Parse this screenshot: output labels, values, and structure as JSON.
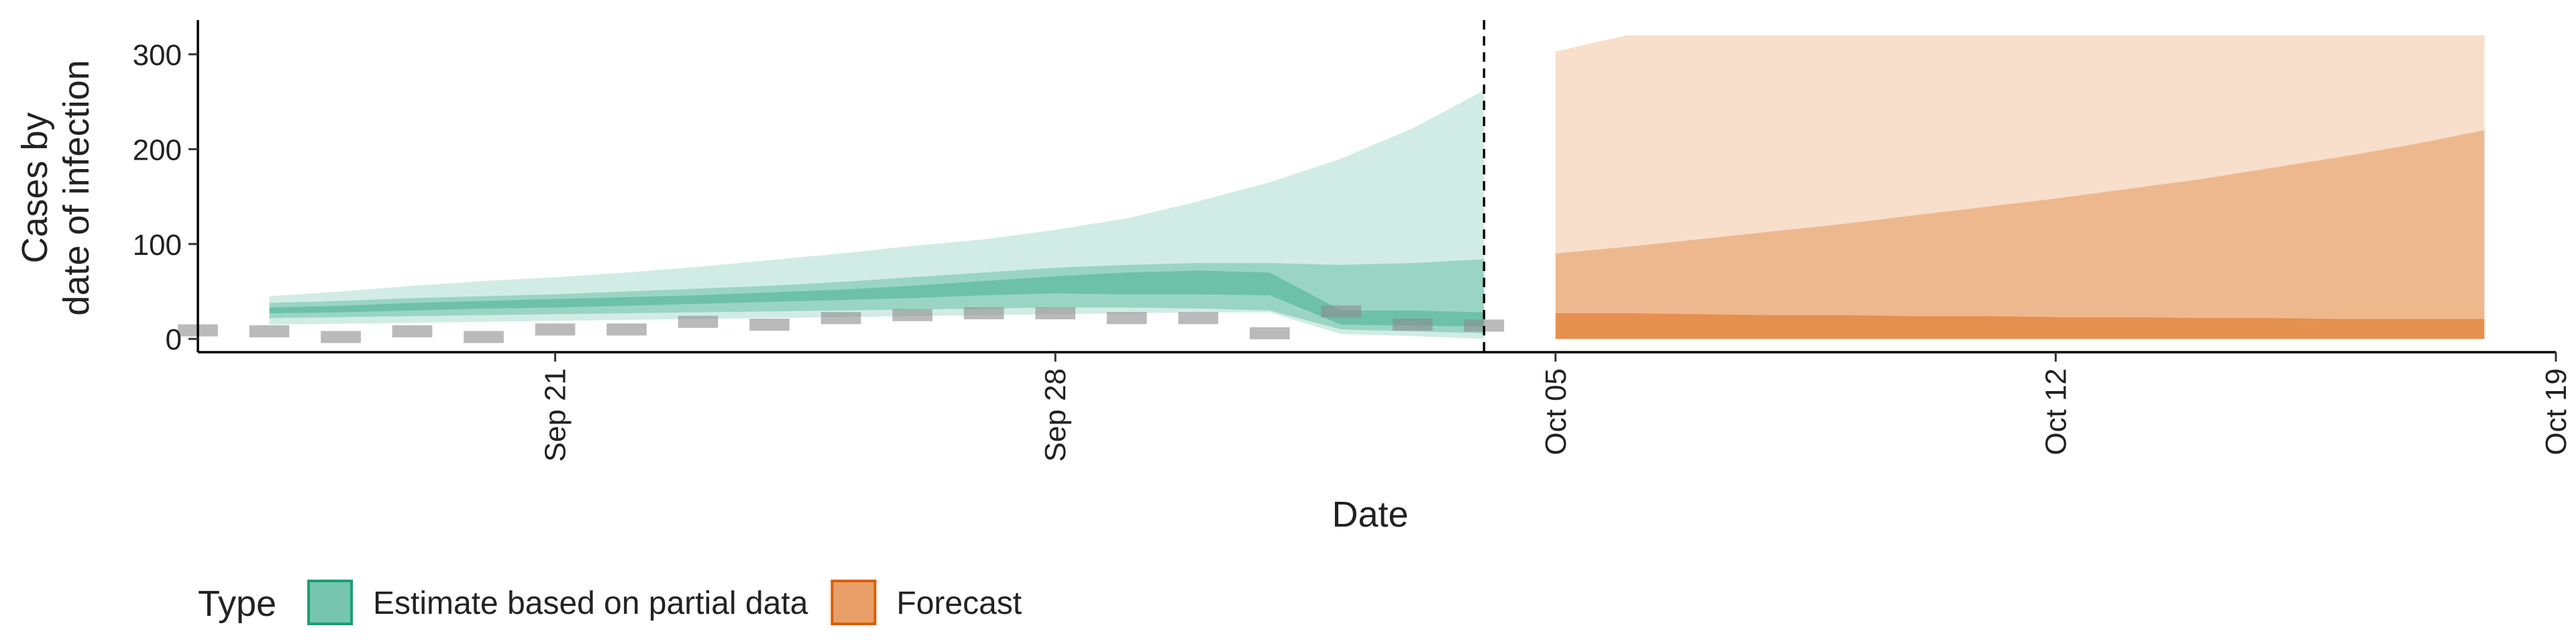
{
  "chart_data": {
    "type": "area",
    "xlabel": "Date",
    "ylabel_lines": [
      "Cases by",
      "date of infection"
    ],
    "x_range": [
      "2020-09-16",
      "2020-10-19"
    ],
    "ylim": [
      -14,
      336
    ],
    "y_ticks": [
      0,
      100,
      200,
      300
    ],
    "x_ticks": [
      {
        "date": "2020-09-21",
        "label": "Sep 21"
      },
      {
        "date": "2020-09-28",
        "label": "Sep 28"
      },
      {
        "date": "2020-10-05",
        "label": "Oct 05"
      },
      {
        "date": "2020-10-12",
        "label": "Oct 12"
      },
      {
        "date": "2020-10-19",
        "label": "Oct 19"
      }
    ],
    "x_tick_rotation": 90,
    "grid": false,
    "vline": {
      "date": "2020-10-04",
      "style": "dashed"
    },
    "reported_cases": {
      "style": "dashed gray segments",
      "dates": [
        "2020-09-16",
        "2020-09-17",
        "2020-09-18",
        "2020-09-19",
        "2020-09-20",
        "2020-09-21",
        "2020-09-22",
        "2020-09-23",
        "2020-09-24",
        "2020-09-25",
        "2020-09-26",
        "2020-09-27",
        "2020-09-28",
        "2020-09-29",
        "2020-09-30",
        "2020-10-01",
        "2020-10-02",
        "2020-10-03",
        "2020-10-04"
      ],
      "values": [
        9,
        8,
        2,
        8,
        2,
        10,
        10,
        18,
        15,
        22,
        25,
        27,
        27,
        22,
        22,
        6,
        29,
        15,
        14
      ]
    },
    "series": [
      {
        "name": "Estimate based on partial data",
        "color": "#1B9E77",
        "dates": [
          "2020-09-17",
          "2020-09-18",
          "2020-09-19",
          "2020-09-20",
          "2020-09-21",
          "2020-09-22",
          "2020-09-23",
          "2020-09-24",
          "2020-09-25",
          "2020-09-26",
          "2020-09-27",
          "2020-09-28",
          "2020-09-29",
          "2020-09-30",
          "2020-10-01",
          "2020-10-02",
          "2020-10-03",
          "2020-10-04"
        ],
        "median": [
          30,
          32,
          34,
          36,
          38,
          40,
          42,
          44,
          46,
          48,
          50,
          52,
          54,
          54,
          52,
          25,
          24,
          22
        ],
        "ci20": [
          [
            27,
            33
          ],
          [
            28,
            35
          ],
          [
            30,
            38
          ],
          [
            32,
            40
          ],
          [
            33,
            42
          ],
          [
            35,
            44
          ],
          [
            37,
            46
          ],
          [
            39,
            49
          ],
          [
            41,
            52
          ],
          [
            43,
            56
          ],
          [
            46,
            61
          ],
          [
            48,
            66
          ],
          [
            47,
            70
          ],
          [
            47,
            72
          ],
          [
            46,
            70
          ],
          [
            15,
            30
          ],
          [
            14,
            30
          ],
          [
            13,
            28
          ]
        ],
        "ci50": [
          [
            22,
            38
          ],
          [
            23,
            40
          ],
          [
            24,
            43
          ],
          [
            25,
            45
          ],
          [
            26,
            47
          ],
          [
            27,
            50
          ],
          [
            28,
            53
          ],
          [
            29,
            56
          ],
          [
            30,
            60
          ],
          [
            31,
            65
          ],
          [
            32,
            70
          ],
          [
            33,
            75
          ],
          [
            33,
            78
          ],
          [
            32,
            80
          ],
          [
            30,
            80
          ],
          [
            10,
            78
          ],
          [
            8,
            80
          ],
          [
            6,
            84
          ]
        ],
        "ci90": [
          [
            15,
            45
          ],
          [
            16,
            50
          ],
          [
            17,
            56
          ],
          [
            18,
            61
          ],
          [
            19,
            65
          ],
          [
            20,
            70
          ],
          [
            21,
            76
          ],
          [
            22,
            83
          ],
          [
            23,
            90
          ],
          [
            24,
            98
          ],
          [
            25,
            105
          ],
          [
            26,
            115
          ],
          [
            27,
            127
          ],
          [
            28,
            145
          ],
          [
            28,
            165
          ],
          [
            5,
            190
          ],
          [
            3,
            222
          ],
          [
            0,
            262
          ]
        ]
      },
      {
        "name": "Forecast",
        "color": "#D95F02",
        "dates": [
          "2020-10-05",
          "2020-10-06",
          "2020-10-07",
          "2020-10-08",
          "2020-10-09",
          "2020-10-10",
          "2020-10-11",
          "2020-10-12",
          "2020-10-13",
          "2020-10-14",
          "2020-10-15",
          "2020-10-16",
          "2020-10-17",
          "2020-10-18"
        ],
        "median": [
          27,
          26,
          25,
          25,
          24,
          24,
          23,
          23,
          22,
          22,
          21,
          21,
          21,
          21
        ],
        "ci50": [
          [
            0,
            27
          ],
          [
            0,
            27
          ],
          [
            0,
            26
          ],
          [
            0,
            25
          ],
          [
            0,
            25
          ],
          [
            0,
            24
          ],
          [
            0,
            24
          ],
          [
            0,
            23
          ],
          [
            0,
            23
          ],
          [
            0,
            22
          ],
          [
            0,
            22
          ],
          [
            0,
            21
          ],
          [
            0,
            21
          ],
          [
            0,
            21
          ]
        ],
        "ci80": [
          [
            0,
            90
          ],
          [
            0,
            97
          ],
          [
            0,
            105
          ],
          [
            0,
            113
          ],
          [
            0,
            121
          ],
          [
            0,
            130
          ],
          [
            0,
            139
          ],
          [
            0,
            148
          ],
          [
            0,
            158
          ],
          [
            0,
            168
          ],
          [
            0,
            180
          ],
          [
            0,
            192
          ],
          [
            0,
            205
          ],
          [
            0,
            220
          ]
        ],
        "ci90": [
          [
            0,
            303
          ],
          [
            0,
            320
          ],
          [
            0,
            320
          ],
          [
            0,
            320
          ],
          [
            0,
            320
          ],
          [
            0,
            320
          ],
          [
            0,
            320
          ],
          [
            0,
            320
          ],
          [
            0,
            320
          ],
          [
            0,
            320
          ],
          [
            0,
            320
          ],
          [
            0,
            320
          ],
          [
            0,
            320
          ],
          [
            0,
            320
          ]
        ]
      }
    ],
    "legend": {
      "title": "Type",
      "position": "bottom-left",
      "items": [
        {
          "label": "Estimate based on partial data",
          "color": "#1B9E77"
        },
        {
          "label": "Forecast",
          "color": "#D95F02"
        }
      ]
    }
  }
}
